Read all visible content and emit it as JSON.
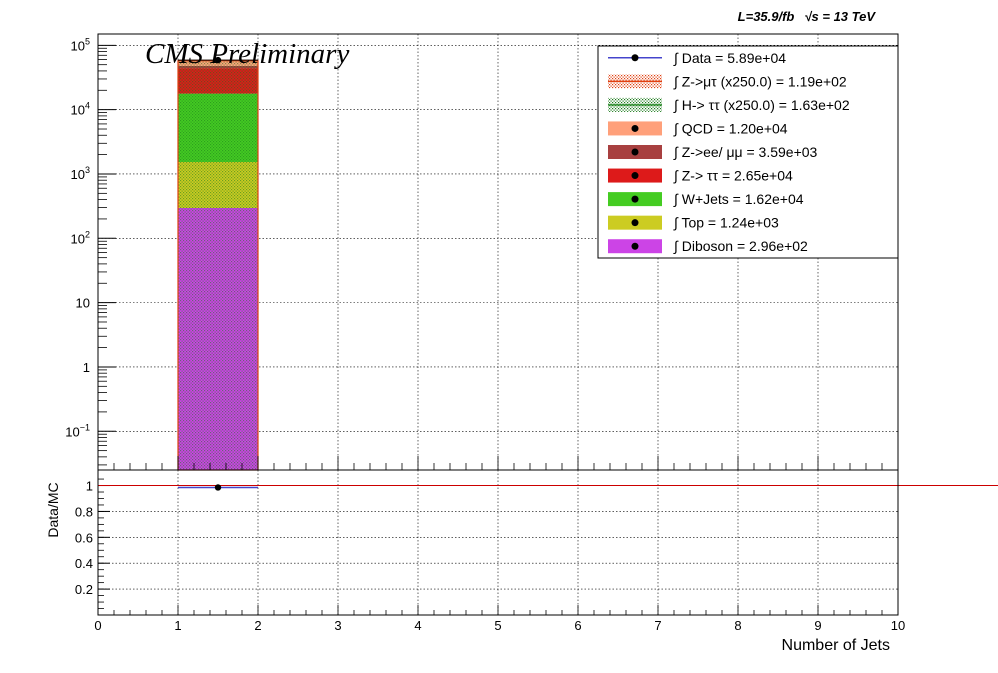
{
  "header": {
    "lumi": "L=35.9/fb",
    "energy_sqrt": "√s",
    "energy_rest": " = 13 TeV",
    "cms": "CMS Preliminary"
  },
  "chart_data": [
    {
      "type": "bar",
      "panel": "main",
      "stacked": true,
      "ylog": true,
      "x_tick_labels": [
        "0",
        "1",
        "2",
        "3",
        "4",
        "5",
        "6",
        "7",
        "8",
        "9",
        "10"
      ],
      "xlim": [
        0,
        10
      ],
      "ylim": [
        0.025,
        150000
      ],
      "y_tick_labels": [
        {
          "value": 100000,
          "base": "10",
          "exp": "5"
        },
        {
          "value": 10000,
          "base": "10",
          "exp": "4"
        },
        {
          "value": 1000,
          "base": "10",
          "exp": "3"
        },
        {
          "value": 100,
          "base": "10",
          "exp": "2"
        },
        {
          "value": 10,
          "base": "10",
          "exp": ""
        },
        {
          "value": 1,
          "base": "1",
          "exp": ""
        },
        {
          "value": 0.1,
          "base": "10",
          "exp": "−1"
        }
      ],
      "grid": true,
      "legend_position": "top-right",
      "bin": [
        1,
        2
      ],
      "stack_order_bottom_to_top": [
        "Diboson",
        "Top",
        "W+Jets",
        "Z->ττ",
        "Z->ee/μμ",
        "QCD"
      ],
      "series": [
        {
          "name": "Diboson",
          "value": 296,
          "color": "#cc44e6",
          "legend": "∫ Diboson = 2.96e+02"
        },
        {
          "name": "Top",
          "value": 1240,
          "color": "#cccc22",
          "legend": "∫ Top = 1.24e+03"
        },
        {
          "name": "W+Jets",
          "value": 16200,
          "color": "#44cc22",
          "legend": "∫ W+Jets = 1.62e+04"
        },
        {
          "name": "Z->ττ",
          "value": 26500,
          "color": "#dd1a1a",
          "legend": "∫ Z-> ττ = 2.65e+04"
        },
        {
          "name": "Z->ee/μμ",
          "value": 3590,
          "color": "#a84040",
          "legend": "∫ Z->ee/ μμ = 3.59e+03"
        },
        {
          "name": "QCD",
          "value": 12000,
          "color": "#ffa07a",
          "legend": "∫ QCD = 1.20e+04"
        },
        {
          "name": "H->ττ (x250.0)",
          "value": 163,
          "color": "#228822",
          "legend": "∫ H-> ττ (x250.0) = 1.63e+02"
        },
        {
          "name": "Z->μτ (x250.0)",
          "value": 119,
          "color": "#e04010",
          "legend": "∫ Z->μτ (x250.0) = 1.19e+02"
        },
        {
          "name": "Data",
          "value": 58900,
          "color": "#000000",
          "legend": "∫ Data = 5.89e+04"
        }
      ],
      "legend_order": [
        "Data",
        "Z->μτ (x250.0)",
        "H->ττ (x250.0)",
        "QCD",
        "Z->ee/μμ",
        "Z->ττ",
        "W+Jets",
        "Top",
        "Diboson"
      ]
    },
    {
      "type": "scatter",
      "panel": "ratio",
      "ylabel": "Data/MC",
      "xlabel": "Number of Jets",
      "x_tick_labels": [
        "0",
        "1",
        "2",
        "3",
        "4",
        "5",
        "6",
        "7",
        "8",
        "9",
        "10"
      ],
      "xlim": [
        0,
        10
      ],
      "ylim": [
        0,
        1.12
      ],
      "y_tick_labels": [
        "0.2",
        "0.4",
        "0.6",
        "0.8",
        "1"
      ],
      "grid": true,
      "reference_line": 1.0,
      "reference_color": "#cc0000",
      "points": [
        {
          "x": 1.5,
          "y": 0.985,
          "xerr": 0.5
        }
      ]
    }
  ]
}
